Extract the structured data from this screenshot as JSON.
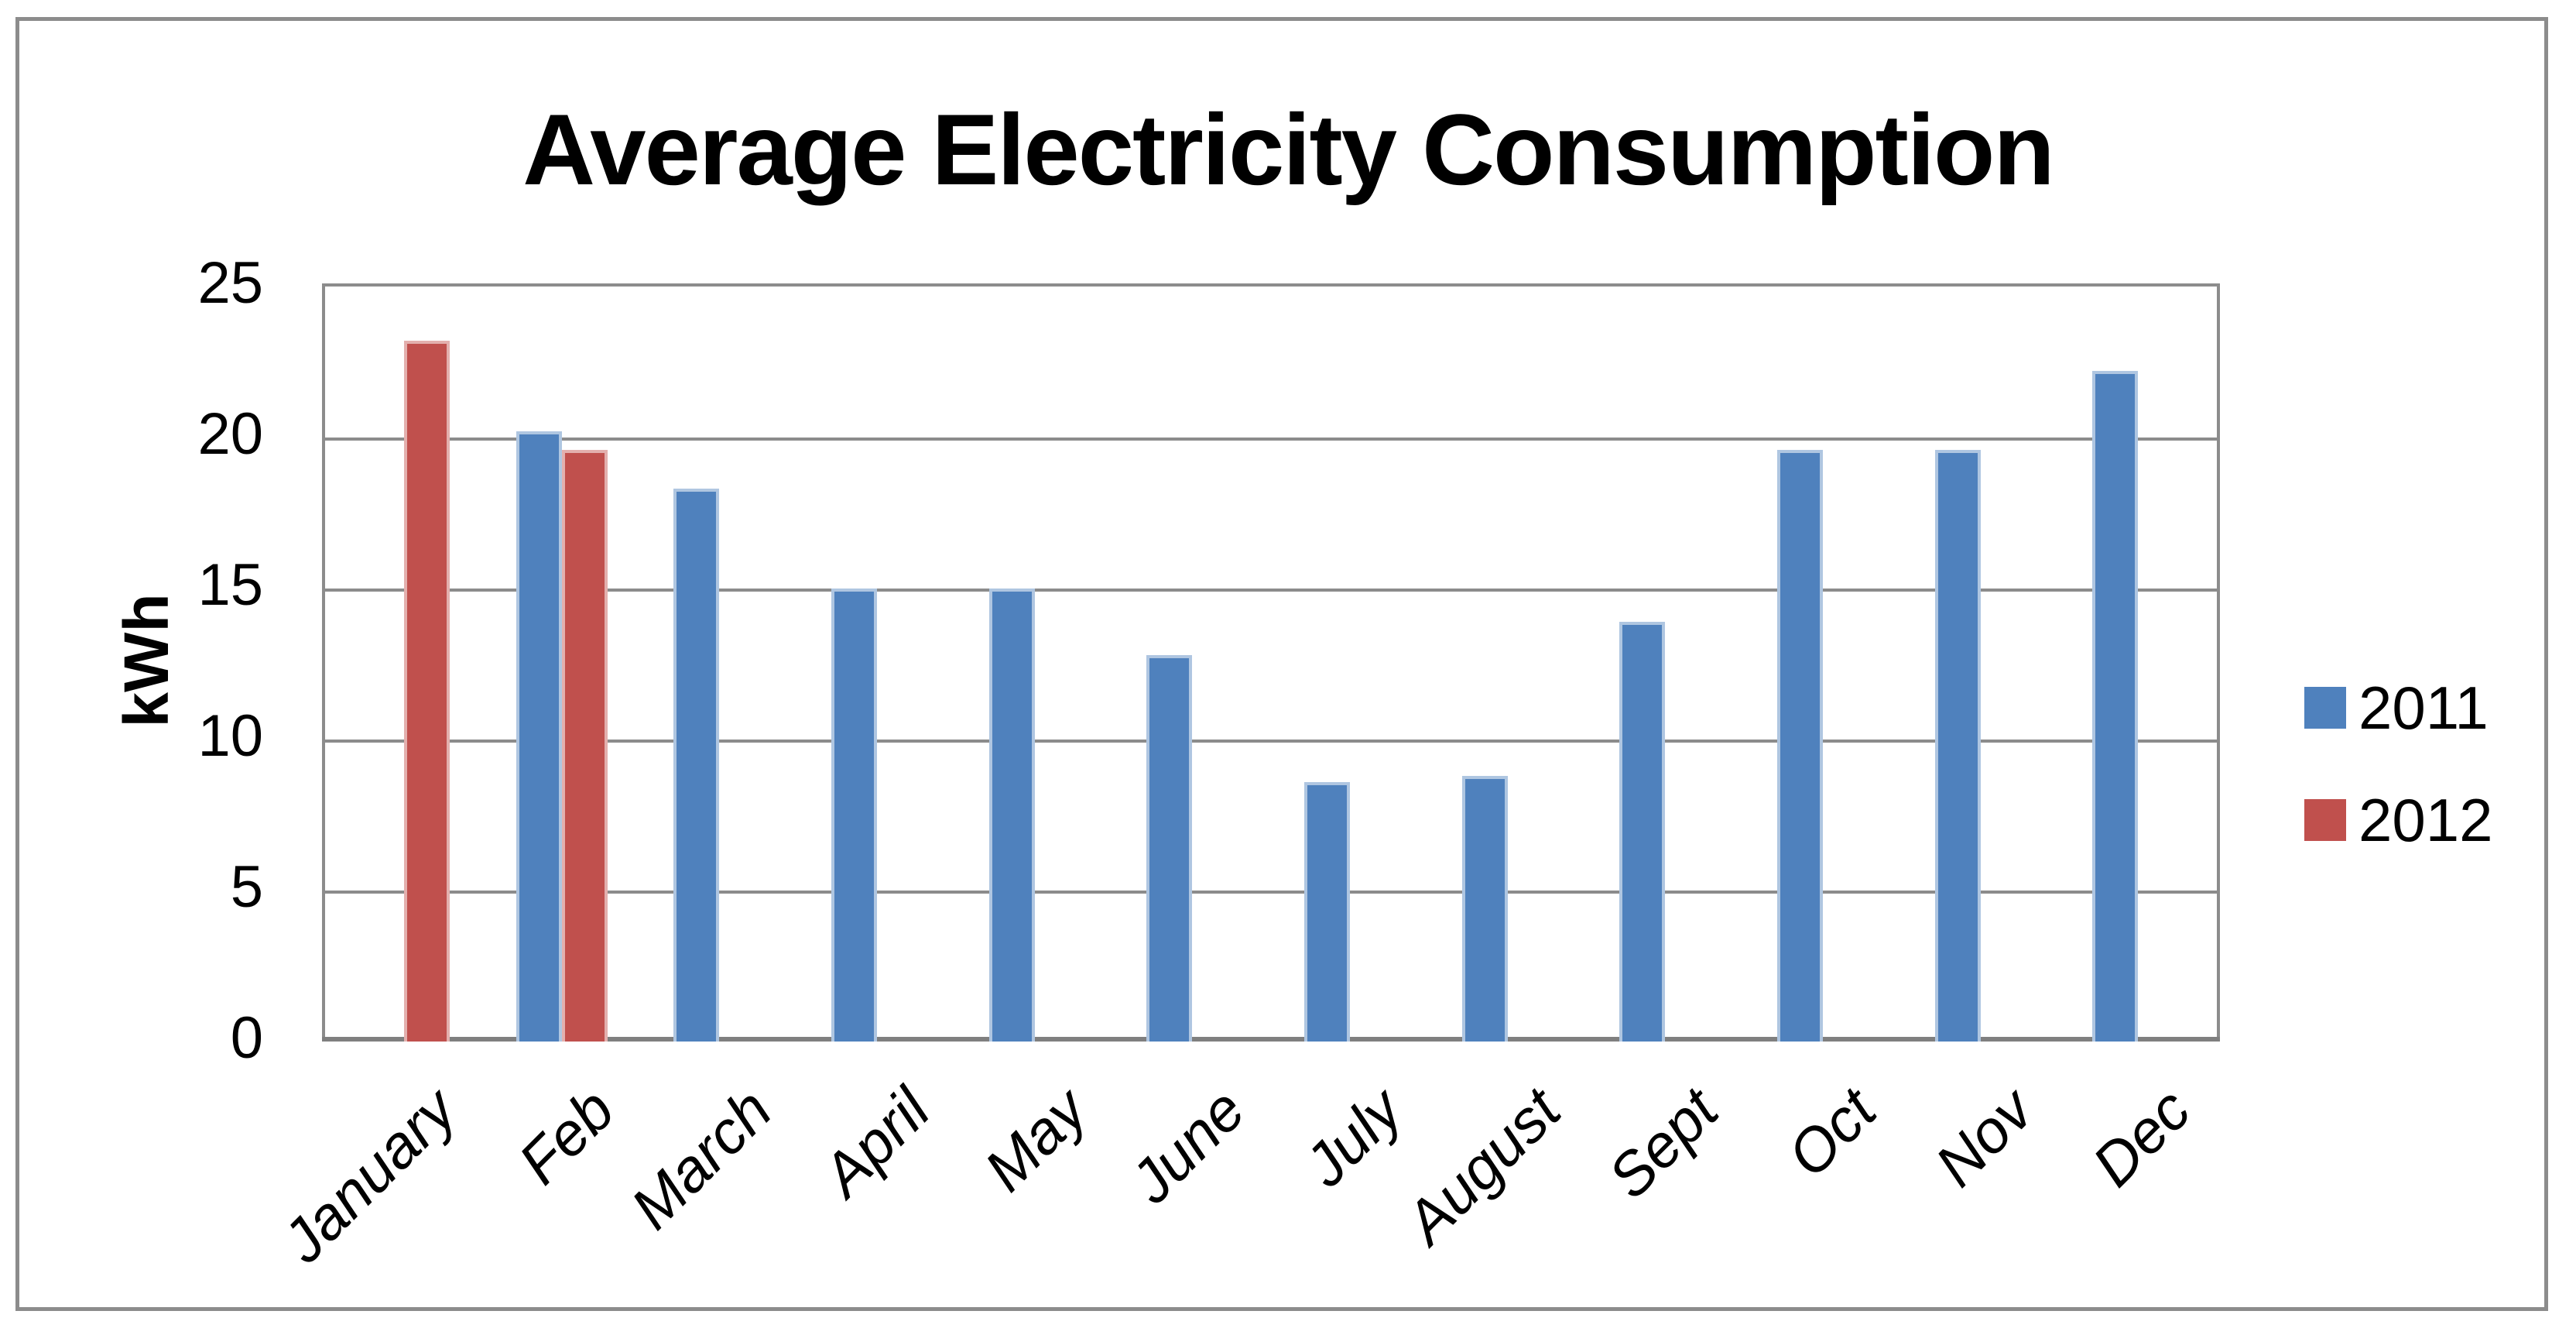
{
  "chart_data": {
    "type": "bar",
    "title": "Average Electricity Consumption",
    "xlabel": "",
    "ylabel": "kWh",
    "ylim": [
      0,
      25
    ],
    "yticks": [
      0,
      5,
      10,
      15,
      20,
      25
    ],
    "categories": [
      "January",
      "Feb",
      "March",
      "April",
      "May",
      "June",
      "July",
      "August",
      "Sept",
      "Oct",
      "Nov",
      "Dec"
    ],
    "series": [
      {
        "name": "2011",
        "color": "#4F81BD",
        "values": [
          null,
          20.2,
          18.3,
          15,
          15,
          12.8,
          8.6,
          8.8,
          13.9,
          19.6,
          19.6,
          22.2
        ]
      },
      {
        "name": "2012",
        "color": "#C0504D",
        "values": [
          23.2,
          19.6,
          null,
          null,
          null,
          null,
          null,
          null,
          null,
          null,
          null,
          null
        ]
      }
    ],
    "legend_position": "right",
    "grid": true,
    "colors": {
      "gridline": "#8C8C8C",
      "axis": "#7F7F7F",
      "frame": "#8C8C8C",
      "text": "#000000"
    }
  }
}
